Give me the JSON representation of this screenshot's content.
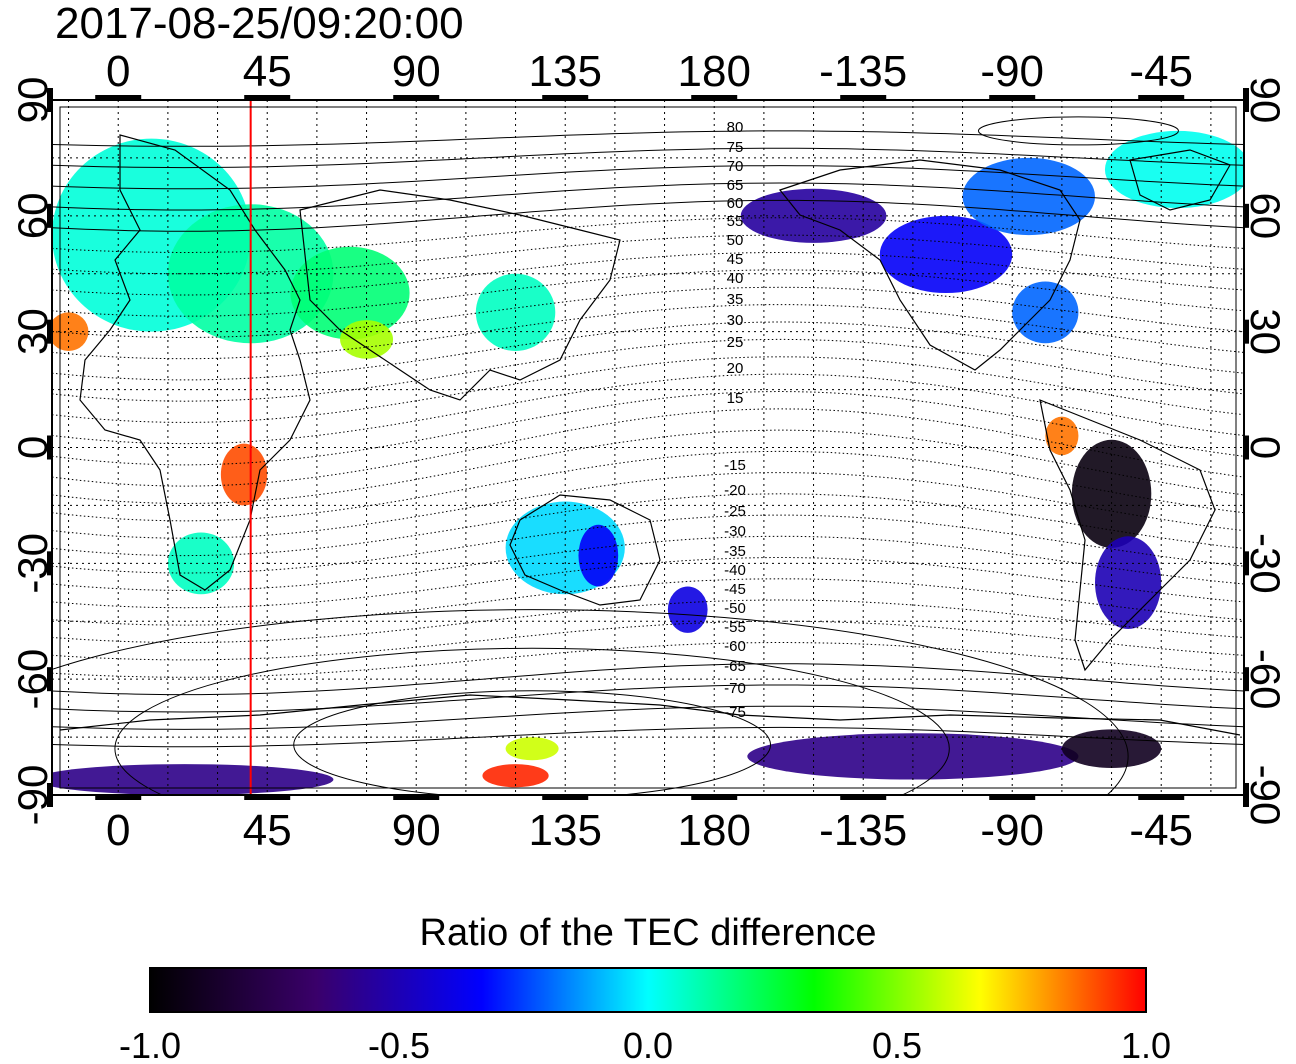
{
  "title": "2017-08-25/09:20:00",
  "top_x_ticks": [
    "0",
    "45",
    "90",
    "135",
    "180",
    "-135",
    "-90",
    "-45"
  ],
  "bottom_x_ticks": [
    "0",
    "45",
    "90",
    "135",
    "180",
    "-135",
    "-90",
    "-45"
  ],
  "left_y_ticks": [
    "90",
    "60",
    "30",
    "0",
    "-30",
    "-60",
    "-90"
  ],
  "right_y_ticks": [
    "90",
    "60",
    "30",
    "0",
    "-30",
    "-60",
    "-90"
  ],
  "contour_labels": [
    "80",
    "75",
    "70",
    "65",
    "60",
    "55",
    "50",
    "45",
    "40",
    "35",
    "30",
    "25",
    "20",
    "15",
    "-15",
    "-20",
    "-25",
    "-30",
    "-35",
    "-40",
    "-45",
    "-50",
    "-55",
    "-60",
    "-65",
    "-70",
    "-75"
  ],
  "colorbar": {
    "title": "Ratio of the TEC difference",
    "tick_labels": [
      "-1.0",
      "-0.5",
      "0.0",
      "0.5",
      "1.0"
    ],
    "range": [
      -1.0,
      1.0
    ],
    "stops": [
      "#000000",
      "#3a006a",
      "#0000ff",
      "#00ffff",
      "#00ff00",
      "#ffff00",
      "#ff0000"
    ]
  },
  "marker_line": {
    "longitude": 40,
    "color": "#ff0000"
  },
  "map_extent": {
    "lon_start": -20,
    "lon_end": 340,
    "lat_min": -90,
    "lat_max": 90
  },
  "tec_regions": [
    {
      "lon": 10,
      "lat": 55,
      "rx": 30,
      "ry": 25,
      "value": 0.05
    },
    {
      "lon": 40,
      "lat": 45,
      "rx": 25,
      "ry": 18,
      "value": 0.12
    },
    {
      "lon": 70,
      "lat": 40,
      "rx": 18,
      "ry": 12,
      "value": 0.18
    },
    {
      "lon": 75,
      "lat": 28,
      "rx": 8,
      "ry": 5,
      "value": 0.55
    },
    {
      "lon": -15,
      "lat": 30,
      "rx": 6,
      "ry": 5,
      "value": 0.85
    },
    {
      "lon": 38,
      "lat": -7,
      "rx": 7,
      "ry": 8,
      "value": 0.9
    },
    {
      "lon": 25,
      "lat": -30,
      "rx": 10,
      "ry": 8,
      "value": 0.08
    },
    {
      "lon": 135,
      "lat": -26,
      "rx": 18,
      "ry": 12,
      "value": -0.05
    },
    {
      "lon": 145,
      "lat": -28,
      "rx": 6,
      "ry": 8,
      "value": -0.35
    },
    {
      "lon": 172,
      "lat": -42,
      "rx": 6,
      "ry": 6,
      "value": -0.4
    },
    {
      "lon": 120,
      "lat": 35,
      "rx": 12,
      "ry": 10,
      "value": 0.08
    },
    {
      "lon": -150,
      "lat": 60,
      "rx": 22,
      "ry": 7,
      "value": -0.55
    },
    {
      "lon": -110,
      "lat": 50,
      "rx": 20,
      "ry": 10,
      "value": -0.35
    },
    {
      "lon": -85,
      "lat": 65,
      "rx": 20,
      "ry": 10,
      "value": -0.2
    },
    {
      "lon": -40,
      "lat": 72,
      "rx": 22,
      "ry": 10,
      "value": 0.02
    },
    {
      "lon": -80,
      "lat": 35,
      "rx": 10,
      "ry": 8,
      "value": -0.2
    },
    {
      "lon": -60,
      "lat": -12,
      "rx": 12,
      "ry": 14,
      "value": -0.95
    },
    {
      "lon": -55,
      "lat": -35,
      "rx": 10,
      "ry": 12,
      "value": -0.5
    },
    {
      "lon": -75,
      "lat": 3,
      "rx": 5,
      "ry": 5,
      "value": 0.85
    },
    {
      "lon": 20,
      "lat": -86,
      "rx": 45,
      "ry": 4,
      "value": -0.6
    },
    {
      "lon": 120,
      "lat": -85,
      "rx": 10,
      "ry": 3,
      "value": 0.95
    },
    {
      "lon": 125,
      "lat": -78,
      "rx": 8,
      "ry": 3,
      "value": 0.6
    },
    {
      "lon": -120,
      "lat": -80,
      "rx": 50,
      "ry": 6,
      "value": -0.6
    },
    {
      "lon": -60,
      "lat": -78,
      "rx": 15,
      "ry": 5,
      "value": -0.9
    }
  ]
}
